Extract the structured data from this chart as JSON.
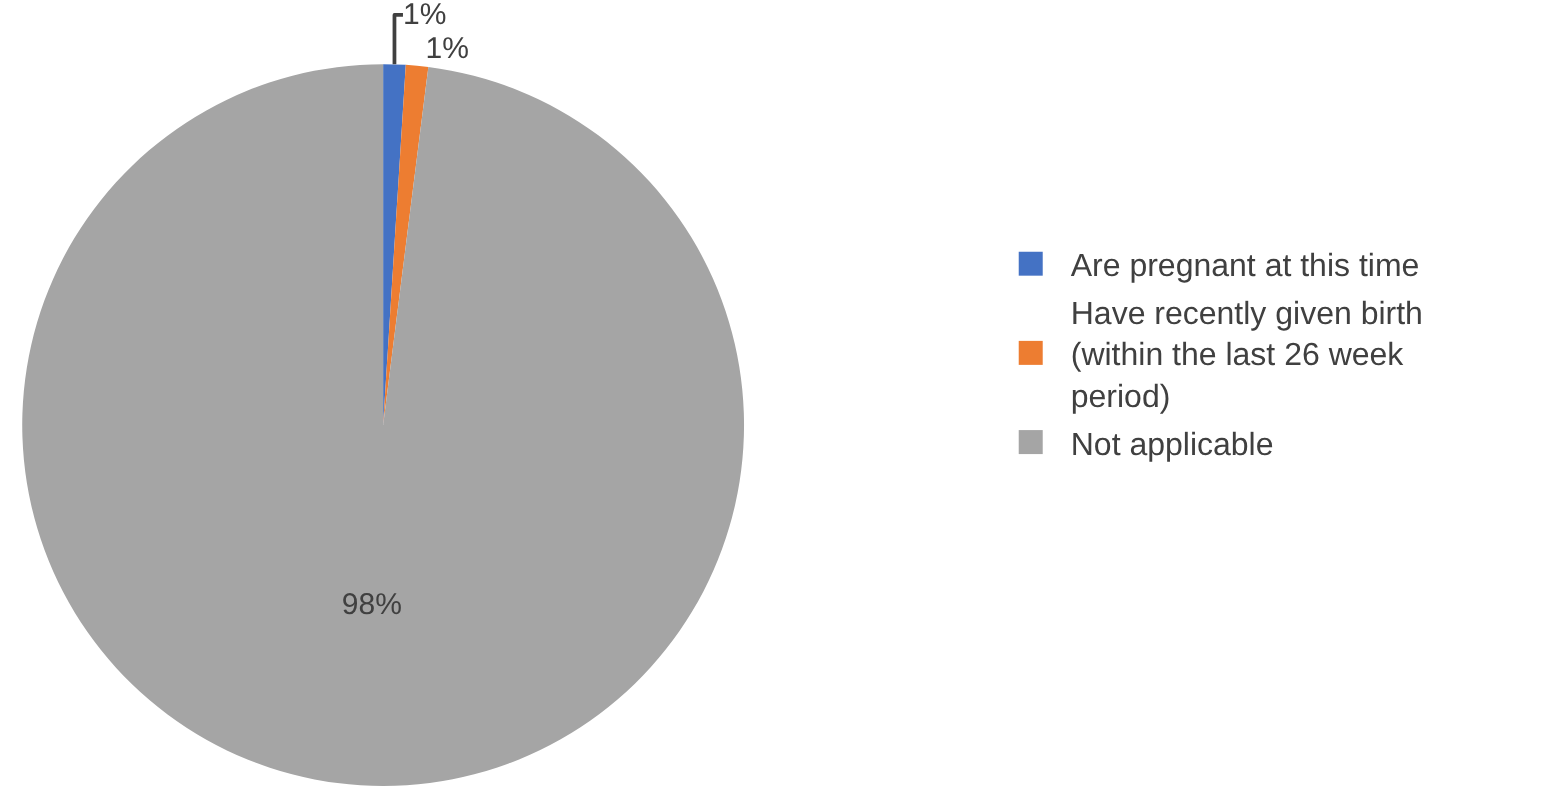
{
  "chart_data": {
    "type": "pie",
    "categories": [
      "Are pregnant at this time",
      "Have recently given birth (within the last 26 week period)",
      "Not applicable"
    ],
    "values": [
      1,
      1,
      98
    ],
    "colors": [
      "#4472c4",
      "#ed7d31",
      "#a5a5a5"
    ],
    "value_labels": [
      "1%",
      "1%",
      "98%"
    ],
    "legend": "right"
  }
}
